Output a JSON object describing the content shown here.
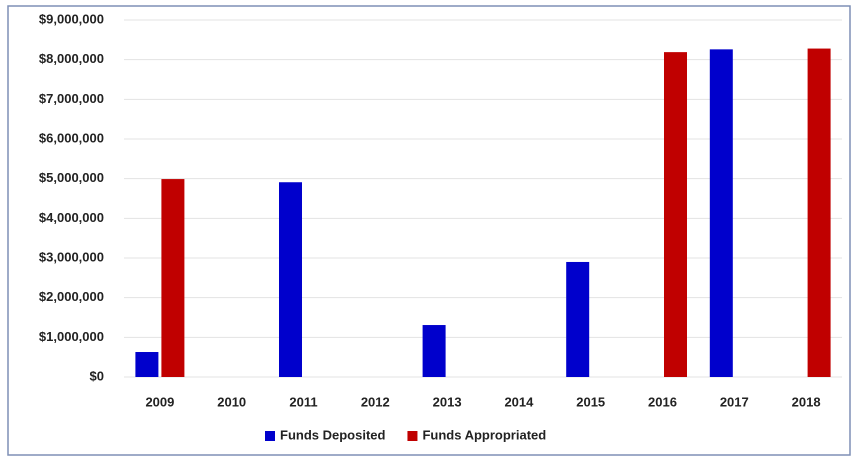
{
  "chart_data": {
    "type": "bar",
    "categories": [
      "2009",
      "2010",
      "2011",
      "2012",
      "2013",
      "2014",
      "2015",
      "2016",
      "2017",
      "2018"
    ],
    "series": [
      {
        "name": "Funds Deposited",
        "color": "#0000cc",
        "values": [
          630000,
          0,
          4910000,
          0,
          1310000,
          0,
          2900000,
          0,
          8260000,
          0
        ]
      },
      {
        "name": "Funds Appropriated",
        "color": "#c00000",
        "values": [
          4990000,
          0,
          0,
          0,
          0,
          0,
          0,
          8190000,
          0,
          8280000
        ]
      }
    ],
    "ylim": [
      0,
      9000000
    ],
    "yticks": [
      {
        "value": 0,
        "label": "$0"
      },
      {
        "value": 1000000,
        "label": "$1,000,000"
      },
      {
        "value": 2000000,
        "label": "$2,000,000"
      },
      {
        "value": 3000000,
        "label": "$3,000,000"
      },
      {
        "value": 4000000,
        "label": "$4,000,000"
      },
      {
        "value": 5000000,
        "label": "$5,000,000"
      },
      {
        "value": 6000000,
        "label": "$6,000,000"
      },
      {
        "value": 7000000,
        "label": "$7,000,000"
      },
      {
        "value": 8000000,
        "label": "$8,000,000"
      },
      {
        "value": 9000000,
        "label": "$9,000,000"
      }
    ],
    "grid": true,
    "legend": "bottom"
  }
}
